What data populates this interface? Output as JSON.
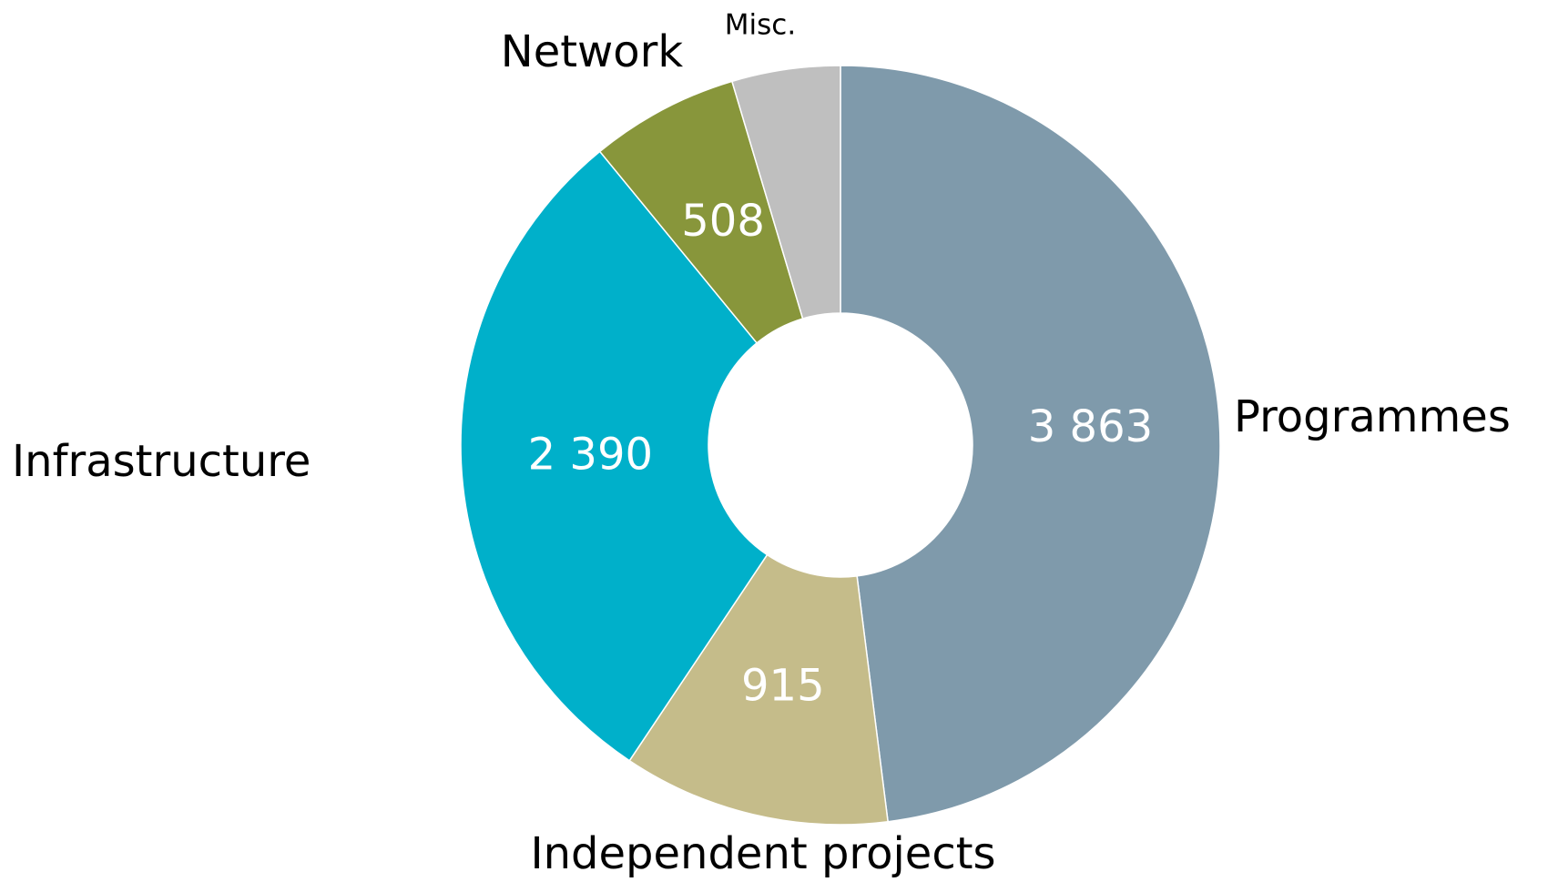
{
  "chart_data": {
    "type": "donut",
    "categories": [
      "Programmes",
      "Independent projects",
      "Infrastructure",
      "Network",
      "Misc."
    ],
    "values": [
      3863,
      915,
      2390,
      508,
      371
    ],
    "value_labels": [
      "3 863",
      "915",
      "2 390",
      "508",
      null
    ],
    "colors": [
      "#7f9aab",
      "#c5bc8a",
      "#00b0ca",
      "#88963b",
      "#bfbfbf"
    ]
  }
}
